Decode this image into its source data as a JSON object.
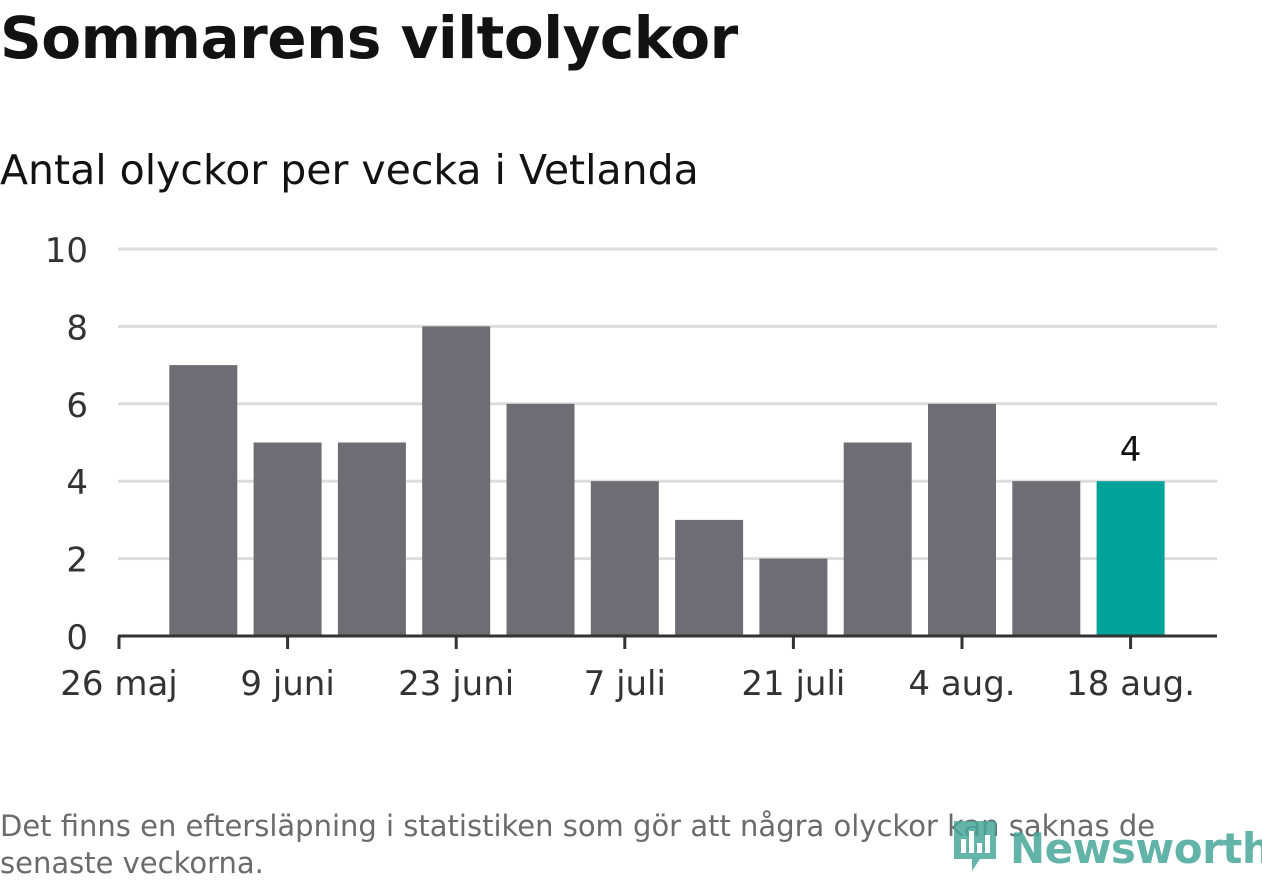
{
  "title": "Sommarens viltolyckor",
  "subtitle": "Antal olyckor per vecka i Vetlanda",
  "footnote": "Det finns en eftersläpning i statistiken som gör att några olyckor kan saknas de senaste veckorna.",
  "brand": {
    "name": "Newsworthy",
    "icon": "newsworthy-logo-icon",
    "color": "#48a89a"
  },
  "colors": {
    "bar": "#6e6d73",
    "highlight": "#00a39a",
    "grid": "#dddddd",
    "axis": "#333333"
  },
  "chart_data": {
    "type": "bar",
    "title": "Sommarens viltolyckor",
    "subtitle": "Antal olyckor per vecka i Vetlanda",
    "xlabel": "",
    "ylabel": "",
    "ylim": [
      0,
      10
    ],
    "yticks": [
      0,
      2,
      4,
      6,
      8,
      10
    ],
    "x_tick_labels": [
      "26 maj",
      "9 juni",
      "23 juni",
      "7 juli",
      "21 juli",
      "4 aug.",
      "18 aug."
    ],
    "weeks": [
      "2 juni",
      "9 juni",
      "16 juni",
      "23 juni",
      "30 juni",
      "7 juli",
      "14 juli",
      "21 juli",
      "28 juli",
      "4 aug.",
      "11 aug.",
      "18 aug."
    ],
    "values": [
      7,
      5,
      5,
      8,
      6,
      4,
      3,
      2,
      5,
      6,
      4,
      4
    ],
    "highlight_index": 11,
    "data_labels": [
      {
        "index": 11,
        "text": "4"
      }
    ],
    "grid": true,
    "legend": "none"
  }
}
